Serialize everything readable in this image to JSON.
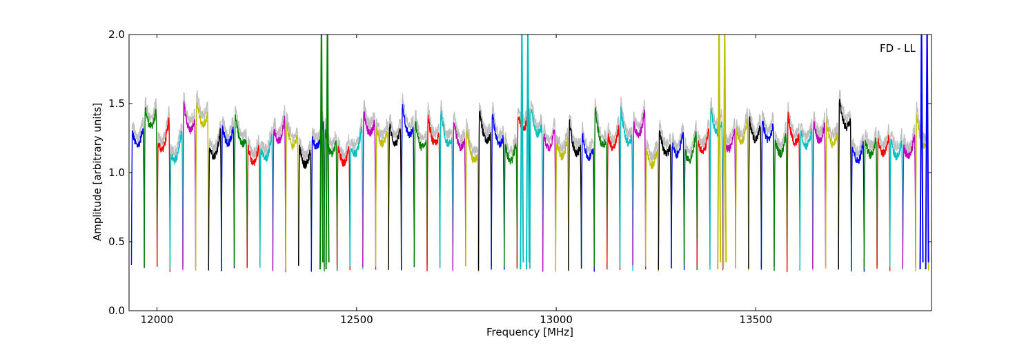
{
  "chart_data": {
    "type": "line",
    "title": "",
    "xlabel": "Frequency [MHz]",
    "ylabel": "Amplitude [arbitrary units]",
    "xlim": [
      11930,
      13940
    ],
    "ylim": [
      0.0,
      2.0
    ],
    "x_ticks": [
      12000,
      12500,
      13000,
      13500
    ],
    "y_ticks": [
      0.0,
      0.5,
      1.0,
      1.5,
      2.0
    ],
    "x_tick_labels": [
      "12000",
      "12500",
      "13000",
      "13500"
    ],
    "y_tick_labels": [
      "0.0",
      "0.5",
      "1.0",
      "1.5",
      "2.0"
    ],
    "annotation": "FD - LL",
    "annotation_position": "top-right",
    "grid": false,
    "legend": "none",
    "background_series_color": "#bfbfbf",
    "channel_colors": [
      "#0000ff",
      "#008000",
      "#ff0000",
      "#00bfbf",
      "#bf00bf",
      "#bfbf00",
      "#000000"
    ],
    "channel_width_mhz": 32.2,
    "channel_count": 62,
    "channel_start_mhz": 11936,
    "dip_min_amplitude": 0.28,
    "typical_plateau_amplitude": [
      1.0,
      1.45
    ],
    "spikes": [
      {
        "x": 12412,
        "color": "#008000",
        "peak": 2.0
      },
      {
        "x": 12427,
        "color": "#008000",
        "peak": 2.0
      },
      {
        "x": 12914,
        "color": "#00bfbf",
        "peak": 2.0
      },
      {
        "x": 12929,
        "color": "#00bfbf",
        "peak": 2.0
      },
      {
        "x": 13408,
        "color": "#bfbf00",
        "peak": 2.0
      },
      {
        "x": 13422,
        "color": "#bfbf00",
        "peak": 2.0
      },
      {
        "x": 13915,
        "color": "#0000ff",
        "peak": 2.0
      },
      {
        "x": 13929,
        "color": "#0000ff",
        "peak": 2.0
      }
    ]
  }
}
